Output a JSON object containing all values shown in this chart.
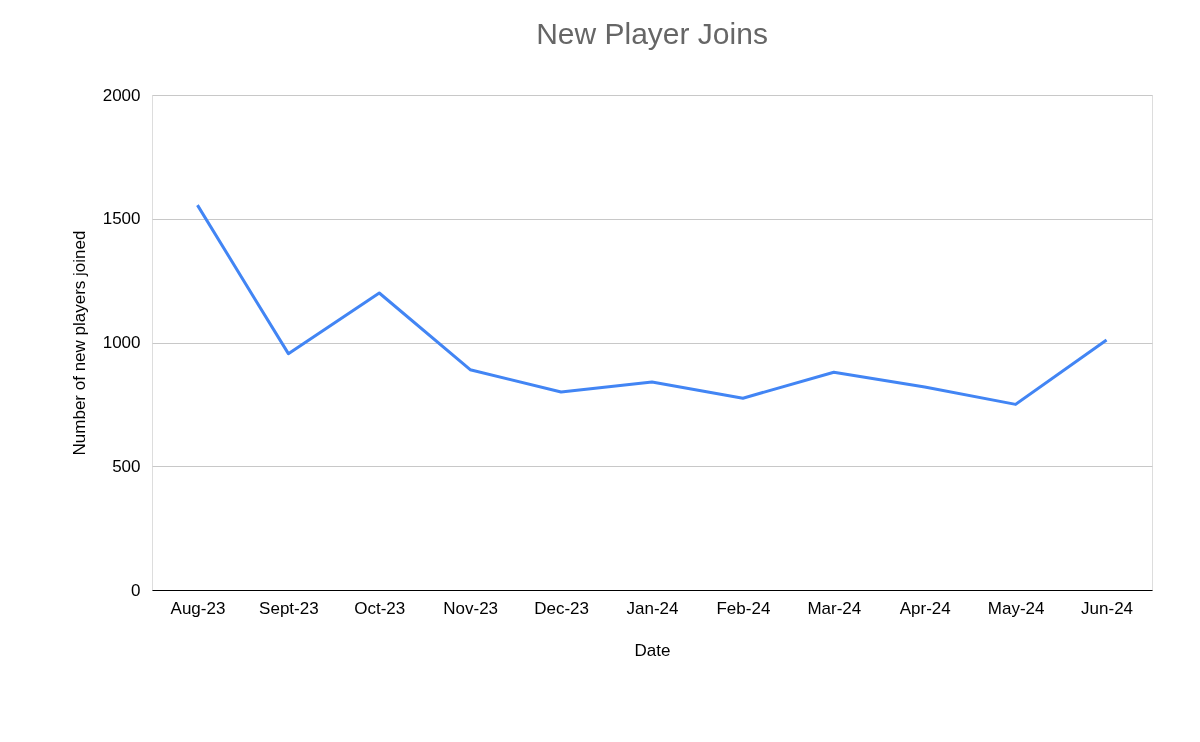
{
  "chart_data": {
    "type": "line",
    "title": "New Player Joins",
    "xlabel": "Date",
    "ylabel": "Number of new players joined",
    "categories": [
      "Aug-23",
      "Sept-23",
      "Oct-23",
      "Nov-23",
      "Dec-23",
      "Jan-24",
      "Feb-24",
      "Mar-24",
      "Apr-24",
      "May-24",
      "Jun-24"
    ],
    "series": [
      {
        "color": "#4285f4",
        "values": [
          1555,
          955,
          1200,
          890,
          800,
          840,
          775,
          880,
          820,
          750,
          1010
        ]
      }
    ],
    "ylim": [
      0,
      2000
    ],
    "yticks": [
      0,
      500,
      1000,
      1500,
      2000
    ],
    "grid": "y",
    "marker": "none",
    "line_style": "solid"
  }
}
